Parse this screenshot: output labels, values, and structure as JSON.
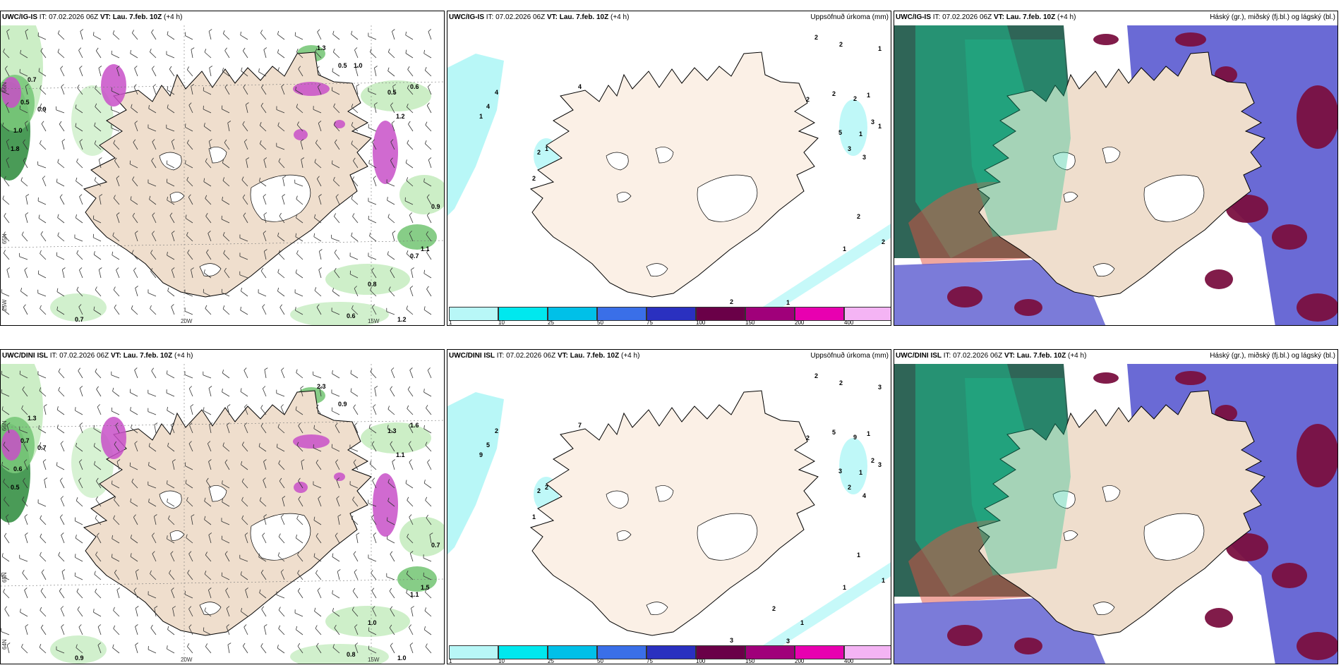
{
  "panels": [
    {
      "model": "UWC/IG-IS",
      "it_label": "IT:",
      "it": "07.02.2026 06Z",
      "vt_label": "VT:",
      "vt": "Lau. 7.feb. 10Z",
      "lead": "(+4 h)",
      "right_title": ""
    },
    {
      "model": "UWC/IG-IS",
      "it_label": "IT:",
      "it": "07.02.2026 06Z",
      "vt_label": "VT:",
      "vt": "Lau. 7.feb. 10Z",
      "lead": "(+4 h)",
      "right_title": "Uppsöfnuð úrkoma (mm)"
    },
    {
      "model": "UWC/IG-IS",
      "it_label": "IT:",
      "it": "07.02.2026 06Z",
      "vt_label": "VT:",
      "vt": "Lau. 7.feb. 10Z",
      "lead": "(+4 h)",
      "right_title": "Háský (gr.), miðský (fj.bl.) og lágský (bl.)"
    },
    {
      "model": "UWC/DINI ISL",
      "it_label": "IT:",
      "it": "07.02.2026 06Z",
      "vt_label": "VT:",
      "vt": "Lau. 7.feb. 10Z",
      "lead": "(+4 h)",
      "right_title": ""
    },
    {
      "model": "UWC/DINI ISL",
      "it_label": "IT:",
      "it": "07.02.2026 06Z",
      "vt_label": "VT:",
      "vt": "Lau. 7.feb. 10Z",
      "lead": "(+4 h)",
      "right_title": "Uppsöfnuð úrkoma (mm)"
    },
    {
      "model": "UWC/DINI ISL",
      "it_label": "IT:",
      "it": "07.02.2026 06Z",
      "vt_label": "VT:",
      "vt": "Lau. 7.feb. 10Z",
      "lead": "(+4 h)",
      "right_title": "Háský (gr.), miðský (fj.bl.) og lágský (bl.)"
    }
  ],
  "axis_labels": {
    "lon20": "20W",
    "lon15": "15W",
    "lon25": "25W",
    "lat64": "64N",
    "lat65": "65N",
    "lat66": "66N"
  },
  "colorbar": {
    "labels": [
      "1",
      "10",
      "25",
      "50",
      "75",
      "100",
      "150",
      "200",
      "400"
    ],
    "colors": [
      "#b8f7f7",
      "#00e8ee",
      "#00c0e8",
      "#3a6fe8",
      "#2a30c0",
      "#6a0048",
      "#a0007a",
      "#e800b0",
      "#f4b4f4"
    ]
  },
  "map_values": {
    "wind_top": [
      "0.7",
      "0.5",
      "0.9",
      "1.0",
      "1.8",
      "0.5",
      "1.3",
      "0.5",
      "0.6",
      "1.2",
      "0.9",
      "1.1",
      "0.7",
      "0.8",
      "0.6",
      "0.7",
      "1.2",
      "1.0"
    ],
    "wind_bottom": [
      "1.3",
      "0.7",
      "0.7",
      "0.6",
      "0.5",
      "0.9",
      "2.3",
      "1.3",
      "1.6",
      "1.1",
      "0.7",
      "1.5",
      "1.1",
      "1.0",
      "0.8",
      "0.9",
      "1.0"
    ],
    "precip_top": [
      "2",
      "2",
      "1",
      "4",
      "4",
      "4",
      "1",
      "2",
      "2",
      "1",
      "2",
      "3",
      "5",
      "3",
      "3",
      "1",
      "1",
      "2",
      "1",
      "2",
      "1",
      "2",
      "1",
      "2",
      "2"
    ],
    "precip_bottom": [
      "2",
      "2",
      "3",
      "7",
      "2",
      "5",
      "9",
      "5",
      "9",
      "1",
      "2",
      "2",
      "3",
      "2",
      "4",
      "3",
      "1",
      "2",
      "2",
      "1",
      "3",
      "1",
      "1",
      "3",
      "1",
      "1",
      "2"
    ]
  },
  "colors": {
    "land": "#efdecd",
    "land_panel2": "#fbf0e6",
    "sea": "#ffffff",
    "wind_green_light": "#c6ecc0",
    "wind_green": "#7ac87a",
    "wind_green_dark": "#2a8a3a",
    "precip_pink": "#c850c8",
    "cloud_high": "#0a4a3a",
    "cloud_mid": "#5a5ad0",
    "cloud_low": "#7a1040"
  }
}
